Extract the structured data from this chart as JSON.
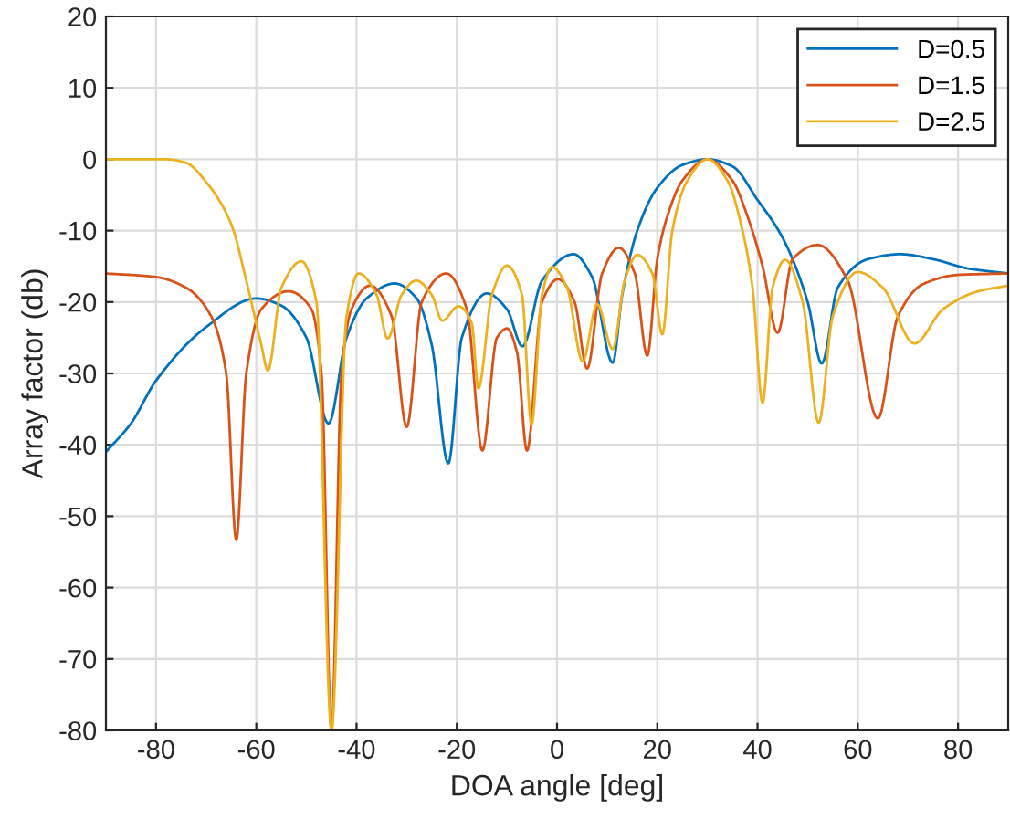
{
  "chart_data": {
    "type": "line",
    "xlabel": "DOA angle [deg]",
    "ylabel": "Array factor (db)",
    "xlim": [
      -90,
      90
    ],
    "ylim": [
      -80,
      20
    ],
    "xticks": [
      -80,
      -60,
      -40,
      -20,
      0,
      20,
      40,
      60,
      80
    ],
    "yticks": [
      -80,
      -70,
      -60,
      -50,
      -40,
      -30,
      -20,
      -10,
      0,
      10,
      20
    ],
    "grid": true,
    "legend": "top right",
    "line_style": "solid",
    "marker": "none",
    "series": [
      {
        "name": "D=0.5",
        "color": "#0072bd",
        "x": [
          -90,
          -85,
          -80,
          -70,
          -60,
          -55,
          -50,
          -45.6,
          -42,
          -38,
          -32.4,
          -28,
          -25,
          -21.7,
          -19,
          -14,
          -10,
          -6.9,
          -3,
          3.3,
          7,
          11.1,
          13,
          16,
          20,
          25,
          30,
          35,
          40,
          45,
          50,
          52.8,
          56,
          62,
          68.5,
          75,
          82,
          90
        ],
        "values": [
          -41,
          -37,
          -31,
          -23.5,
          -19.5,
          -20.5,
          -25,
          -37,
          -25,
          -19.5,
          -17.4,
          -19.5,
          -26,
          -42.6,
          -25,
          -18.8,
          -21,
          -26.2,
          -17,
          -13.3,
          -16.5,
          -28.5,
          -19,
          -10,
          -4,
          -0.8,
          0,
          -1,
          -5.7,
          -11,
          -20,
          -28.6,
          -18,
          -14,
          -13.3,
          -14,
          -15.3,
          -16
        ]
      },
      {
        "name": "D=1.5",
        "color": "#d95319",
        "x": [
          -90,
          -80,
          -74,
          -69,
          -66,
          -64,
          -62,
          -59,
          -53.6,
          -49,
          -47,
          -45,
          -43,
          -41,
          -37.3,
          -33,
          -30,
          -27,
          -22.1,
          -18,
          -14.9,
          -12,
          -10,
          -8,
          -6,
          -3,
          0.2,
          3.5,
          6,
          9,
          12.3,
          15.5,
          18,
          20,
          22,
          25,
          30,
          35,
          38,
          41,
          44,
          47,
          52,
          58,
          64,
          68,
          73,
          80,
          90
        ],
        "values": [
          -16,
          -16.5,
          -18,
          -22,
          -30,
          -53.3,
          -30,
          -21,
          -18.5,
          -21,
          -30,
          -80,
          -30,
          -21,
          -17.7,
          -22,
          -37.5,
          -20,
          -16,
          -21,
          -40.8,
          -25,
          -23.7,
          -27,
          -40.8,
          -20,
          -16.8,
          -20,
          -29.3,
          -16,
          -12.4,
          -16,
          -27.5,
          -14,
          -8,
          -3,
          0,
          -3,
          -8,
          -15,
          -24.3,
          -14,
          -12,
          -17,
          -36.3,
          -22,
          -17.5,
          -16.2,
          -16
        ]
      },
      {
        "name": "D=2.5",
        "color": "#edb120",
        "x": [
          -90,
          -78,
          -74,
          -70,
          -65,
          -62,
          -59,
          -57.7,
          -55,
          -51,
          -48,
          -45,
          -42,
          -39.6,
          -36,
          -33.8,
          -31,
          -28.1,
          -25,
          -22.9,
          -19.7,
          -17,
          -15.7,
          -13,
          -10,
          -7,
          -5.1,
          -3,
          -1,
          2,
          5.1,
          8,
          11.1,
          13.5,
          16,
          19,
          21,
          23,
          26,
          30,
          34,
          37,
          39,
          41,
          43,
          45.5,
          49,
          52.2,
          55,
          60,
          65,
          71.3,
          77,
          84,
          90
        ],
        "values": [
          0,
          0,
          -0.5,
          -3.2,
          -9.1,
          -17,
          -26,
          -29.6,
          -18,
          -14.3,
          -20,
          -80,
          -22,
          -16,
          -19,
          -25.1,
          -19,
          -17,
          -19,
          -22.6,
          -20.6,
          -23,
          -32.1,
          -19,
          -14.9,
          -19,
          -37.2,
          -19,
          -15.1,
          -18,
          -28.3,
          -20.3,
          -26.6,
          -17,
          -13.4,
          -16,
          -24.5,
          -10,
          -3,
          0,
          -3,
          -10,
          -18,
          -34.1,
          -18,
          -14.1,
          -20,
          -36.9,
          -22,
          -15.8,
          -18,
          -25.8,
          -21,
          -18.5,
          -17.7
        ]
      }
    ]
  }
}
